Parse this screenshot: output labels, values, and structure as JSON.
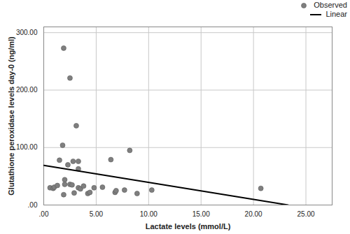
{
  "chart_data": {
    "type": "scatter",
    "x_label": "Lactate levels (mmol/L)",
    "y_label": "Glutathione peroxidase levels day-0 (ng/ml)",
    "xlim": [
      0,
      27.5
    ],
    "ylim": [
      0,
      310
    ],
    "xticks": [
      {
        "value": 0,
        "label": ".00"
      },
      {
        "value": 5,
        "label": "5.00"
      },
      {
        "value": 10,
        "label": "10.00"
      },
      {
        "value": 15,
        "label": "15.00"
      },
      {
        "value": 20,
        "label": "20.00"
      },
      {
        "value": 25,
        "label": "25.00"
      }
    ],
    "yticks": [
      {
        "value": 0,
        "label": ".00"
      },
      {
        "value": 100,
        "label": "100.00"
      },
      {
        "value": 200,
        "label": "200.00"
      },
      {
        "value": 300,
        "label": "300.00"
      }
    ],
    "grid": true,
    "legend": "top-right",
    "series": [
      {
        "name": "Observed",
        "type": "scatter",
        "marker": "circle",
        "color": "#7f7f7f",
        "x": [
          0.6,
          0.9,
          1.0,
          1.3,
          1.5,
          1.8,
          1.9,
          2.0,
          2.0,
          1.9,
          2.3,
          2.5,
          2.5,
          2.7,
          2.8,
          2.9,
          3.1,
          3.3,
          3.3,
          3.3,
          3.5,
          3.8,
          4.2,
          4.4,
          4.8,
          5.6,
          6.4,
          6.8,
          6.9,
          7.7,
          8.2,
          8.9,
          10.3,
          20.7
        ],
        "values": [
          30,
          29,
          31,
          34,
          78,
          104,
          18,
          44,
          36,
          273,
          70,
          221,
          36,
          35,
          76,
          21,
          138,
          76,
          63,
          30,
          28,
          33,
          20,
          22,
          30,
          31,
          79,
          22,
          25,
          26,
          95,
          20,
          26,
          29
        ]
      },
      {
        "name": "Linear",
        "type": "line",
        "line_style": "solid",
        "color": "#000000",
        "x": [
          0,
          23.3
        ],
        "values": [
          69,
          0
        ]
      }
    ]
  }
}
